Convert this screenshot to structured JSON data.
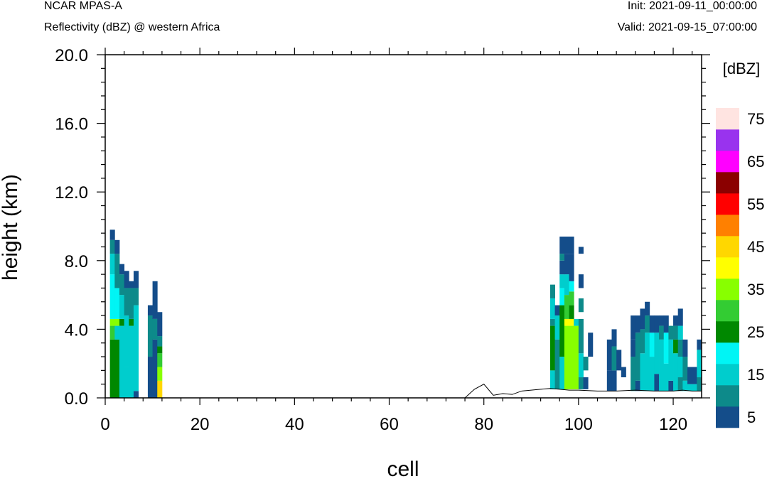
{
  "header": {
    "model": "NCAR MPAS-A",
    "field": "Reflectivity (dBZ) @ western Africa",
    "init": "Init: 2021-09-11_00:00:00",
    "valid": "Valid: 2021-09-15_07:00:00"
  },
  "chart_data": {
    "type": "heatmap",
    "xlabel": "cell",
    "ylabel": "height (km)",
    "xlim": [
      0,
      126
    ],
    "ylim": [
      0,
      20
    ],
    "x_ticks": [
      "0",
      "20",
      "40",
      "60",
      "80",
      "100",
      "120"
    ],
    "y_ticks": [
      "0.0",
      "4.0",
      "8.0",
      "12.0",
      "16.0",
      "20.0"
    ],
    "colorbar": {
      "unit_label": "[dBZ]",
      "levels": [
        5,
        10,
        15,
        20,
        25,
        30,
        35,
        40,
        45,
        50,
        55,
        60,
        65,
        70,
        75
      ],
      "tick_labels": [
        "5",
        "15",
        "25",
        "35",
        "45",
        "55",
        "65",
        "75"
      ],
      "colors": [
        "#144d8a",
        "#0d8a8a",
        "#00cdcd",
        "#00f5f5",
        "#008800",
        "#33cc33",
        "#88ff00",
        "#ffff00",
        "#ffd700",
        "#ff8000",
        "#ff0000",
        "#8b0000",
        "#ff00ff",
        "#9933ee",
        "#ffe4e1"
      ]
    },
    "terrain": {
      "cell": [
        0,
        76,
        78,
        80,
        82,
        84,
        86,
        88,
        90,
        92,
        94,
        96,
        98,
        100,
        104,
        108,
        112,
        116,
        120,
        122,
        124,
        126
      ],
      "height_km": [
        0.0,
        0.0,
        0.5,
        0.8,
        0.15,
        0.25,
        0.2,
        0.4,
        0.45,
        0.5,
        0.55,
        0.5,
        0.45,
        0.45,
        0.4,
        0.4,
        0.45,
        0.4,
        0.4,
        0.45,
        0.4,
        0.4
      ]
    },
    "columns": [
      {
        "cell": 1,
        "top_km": 9.8,
        "segments": [
          [
            0,
            3.4,
            25
          ],
          [
            3.4,
            4.2,
            30
          ],
          [
            4.2,
            4.6,
            35
          ],
          [
            4.6,
            7.2,
            20
          ],
          [
            7.2,
            8.4,
            15
          ],
          [
            8.4,
            9.2,
            10
          ],
          [
            9.2,
            9.8,
            5
          ]
        ]
      },
      {
        "cell": 2,
        "top_km": 9.2,
        "segments": [
          [
            0,
            3.4,
            25
          ],
          [
            3.4,
            4.2,
            15
          ],
          [
            4.2,
            4.6,
            35
          ],
          [
            4.6,
            6.4,
            20
          ],
          [
            6.4,
            8.4,
            10
          ],
          [
            8.4,
            9.2,
            5
          ]
        ]
      },
      {
        "cell": 3,
        "top_km": 7.8,
        "segments": [
          [
            0,
            4.2,
            15
          ],
          [
            4.2,
            4.6,
            25
          ],
          [
            4.6,
            6.0,
            15
          ],
          [
            6.0,
            7.2,
            10
          ],
          [
            7.2,
            7.8,
            5
          ]
        ]
      },
      {
        "cell": 4,
        "top_km": 7.4,
        "segments": [
          [
            0,
            1.8,
            15
          ],
          [
            1.8,
            4.8,
            15
          ],
          [
            4.8,
            6.4,
            10
          ],
          [
            6.4,
            7.4,
            5
          ]
        ]
      },
      {
        "cell": 5,
        "top_km": 6.8,
        "segments": [
          [
            0,
            4.2,
            15
          ],
          [
            4.2,
            4.6,
            25
          ],
          [
            4.6,
            6.4,
            10
          ],
          [
            6.4,
            6.8,
            5
          ]
        ]
      },
      {
        "cell": 6,
        "top_km": 7.4,
        "segments": [
          [
            0,
            0.4,
            5
          ],
          [
            0.4,
            5.4,
            15
          ],
          [
            5.4,
            6.4,
            10
          ],
          [
            6.4,
            7.4,
            5
          ]
        ]
      },
      {
        "cell": 9,
        "top_km": 5.4,
        "segments": [
          [
            0,
            2.4,
            5
          ],
          [
            2.4,
            4.8,
            10
          ],
          [
            4.8,
            5.4,
            5
          ]
        ]
      },
      {
        "cell": 10,
        "top_km": 6.8,
        "segments": [
          [
            0,
            3.4,
            5
          ],
          [
            3.4,
            4.6,
            10
          ],
          [
            4.6,
            6.8,
            5
          ]
        ]
      },
      {
        "cell": 11,
        "top_km": 5.0,
        "segments": [
          [
            0,
            1.0,
            45
          ],
          [
            1.0,
            1.8,
            35
          ],
          [
            1.8,
            2.6,
            30
          ],
          [
            2.6,
            3.0,
            25
          ],
          [
            3.0,
            3.6,
            10
          ],
          [
            3.6,
            5.0,
            5
          ]
        ]
      },
      {
        "cell": 94,
        "top_km": 6.6,
        "segments": [
          [
            0.5,
            1.6,
            15
          ],
          [
            1.6,
            4.2,
            25
          ],
          [
            4.2,
            4.6,
            10
          ],
          [
            4.6,
            5.8,
            15
          ],
          [
            5.8,
            6.6,
            10
          ]
        ]
      },
      {
        "cell": 95,
        "top_km": 5.4,
        "segments": [
          [
            0.5,
            3.4,
            10
          ],
          [
            3.4,
            4.8,
            15
          ],
          [
            4.8,
            5.4,
            5
          ]
        ]
      },
      {
        "cell": 96,
        "top_km": 9.4,
        "segments": [
          [
            0.5,
            2.4,
            15
          ],
          [
            2.4,
            5.4,
            25
          ],
          [
            5.4,
            6.4,
            20
          ],
          [
            6.4,
            7.2,
            15
          ],
          [
            7.2,
            8.0,
            5
          ],
          [
            8.0,
            8.4,
            10
          ],
          [
            8.4,
            9.4,
            5
          ]
        ]
      },
      {
        "cell": 97,
        "top_km": 9.4,
        "segments": [
          [
            0.5,
            4.2,
            35
          ],
          [
            4.2,
            4.6,
            40
          ],
          [
            4.6,
            6.0,
            30
          ],
          [
            6.0,
            7.2,
            15
          ],
          [
            7.2,
            8.4,
            5
          ],
          [
            8.4,
            9.4,
            5
          ]
        ]
      },
      {
        "cell": 98,
        "top_km": 9.4,
        "segments": [
          [
            0.5,
            4.2,
            35
          ],
          [
            4.2,
            4.6,
            40
          ],
          [
            4.6,
            5.4,
            25
          ],
          [
            5.4,
            6.2,
            30
          ],
          [
            6.2,
            6.8,
            20
          ],
          [
            6.8,
            8.4,
            5
          ],
          [
            8.4,
            9.4,
            5
          ]
        ]
      },
      {
        "cell": 99,
        "top_km": 4.6,
        "segments": [
          [
            0.5,
            4.2,
            35
          ],
          [
            4.2,
            4.6,
            15
          ]
        ]
      },
      {
        "cell": 100,
        "top_km": 8.8,
        "segments": [
          [
            0.5,
            1.2,
            10
          ],
          [
            1.2,
            2.6,
            15
          ],
          [
            2.6,
            4.6,
            10
          ],
          [
            5.0,
            5.8,
            10
          ],
          [
            6.4,
            7.2,
            5
          ],
          [
            8.4,
            8.8,
            5
          ]
        ]
      },
      {
        "cell": 101,
        "top_km": 2.4,
        "segments": [
          [
            0.5,
            1.2,
            5
          ],
          [
            1.6,
            2.4,
            10
          ]
        ]
      },
      {
        "cell": 102,
        "top_km": 3.8,
        "segments": [
          [
            2.4,
            3.8,
            5
          ]
        ]
      },
      {
        "cell": 106,
        "top_km": 3.4,
        "segments": [
          [
            0.4,
            1.6,
            5
          ],
          [
            1.6,
            3.4,
            5
          ]
        ]
      },
      {
        "cell": 107,
        "top_km": 4.0,
        "segments": [
          [
            0.4,
            1.6,
            5
          ],
          [
            1.6,
            3.0,
            10
          ],
          [
            3.0,
            4.0,
            5
          ]
        ]
      },
      {
        "cell": 108,
        "top_km": 2.8,
        "segments": [
          [
            1.6,
            2.8,
            5
          ]
        ]
      },
      {
        "cell": 109,
        "top_km": 1.8,
        "segments": [
          [
            1.2,
            1.8,
            5
          ]
        ]
      },
      {
        "cell": 111,
        "top_km": 4.8,
        "segments": [
          [
            0.4,
            2.4,
            10
          ],
          [
            2.4,
            3.4,
            5
          ],
          [
            3.4,
            4.8,
            5
          ]
        ]
      },
      {
        "cell": 112,
        "top_km": 4.8,
        "segments": [
          [
            0.4,
            1.0,
            5
          ],
          [
            1.0,
            3.8,
            10
          ],
          [
            3.8,
            4.8,
            5
          ]
        ]
      },
      {
        "cell": 113,
        "top_km": 5.2,
        "segments": [
          [
            0.4,
            2.6,
            15
          ],
          [
            2.6,
            4.0,
            10
          ],
          [
            4.0,
            5.2,
            5
          ]
        ]
      },
      {
        "cell": 114,
        "top_km": 5.6,
        "segments": [
          [
            0.4,
            3.8,
            15
          ],
          [
            3.8,
            4.8,
            10
          ],
          [
            4.8,
            5.6,
            5
          ]
        ]
      },
      {
        "cell": 115,
        "top_km": 4.8,
        "segments": [
          [
            0.4,
            2.4,
            15
          ],
          [
            2.4,
            3.8,
            20
          ],
          [
            3.8,
            4.8,
            5
          ]
        ]
      },
      {
        "cell": 116,
        "top_km": 4.8,
        "segments": [
          [
            0.4,
            1.4,
            5
          ],
          [
            1.4,
            3.8,
            15
          ],
          [
            3.8,
            4.8,
            5
          ]
        ]
      },
      {
        "cell": 117,
        "top_km": 4.8,
        "segments": [
          [
            0.4,
            3.4,
            15
          ],
          [
            3.4,
            4.2,
            10
          ],
          [
            4.2,
            4.8,
            5
          ]
        ]
      },
      {
        "cell": 118,
        "top_km": 4.8,
        "segments": [
          [
            0.4,
            2.0,
            15
          ],
          [
            2.0,
            3.8,
            20
          ],
          [
            3.8,
            4.8,
            5
          ]
        ]
      },
      {
        "cell": 119,
        "top_km": 4.2,
        "segments": [
          [
            0.4,
            1.0,
            5
          ],
          [
            1.0,
            3.4,
            15
          ],
          [
            3.4,
            4.2,
            10
          ]
        ]
      },
      {
        "cell": 120,
        "top_km": 4.8,
        "segments": [
          [
            0.4,
            2.6,
            15
          ],
          [
            2.6,
            3.4,
            25
          ],
          [
            3.4,
            4.2,
            10
          ],
          [
            4.2,
            4.8,
            5
          ]
        ]
      },
      {
        "cell": 121,
        "top_km": 5.2,
        "segments": [
          [
            0.4,
            1.2,
            10
          ],
          [
            1.2,
            2.4,
            15
          ],
          [
            2.4,
            3.4,
            10
          ],
          [
            3.4,
            4.2,
            15
          ],
          [
            4.2,
            5.2,
            5
          ]
        ]
      },
      {
        "cell": 122,
        "top_km": 3.4,
        "segments": [
          [
            0.4,
            1.0,
            15
          ],
          [
            1.0,
            2.4,
            10
          ],
          [
            2.4,
            3.4,
            5
          ]
        ]
      },
      {
        "cell": 123,
        "top_km": 1.8,
        "segments": [
          [
            0.4,
            0.8,
            15
          ],
          [
            0.8,
            1.8,
            5
          ]
        ]
      },
      {
        "cell": 124,
        "top_km": 1.8,
        "segments": [
          [
            0.4,
            0.8,
            15
          ],
          [
            0.8,
            1.8,
            5
          ]
        ]
      },
      {
        "cell": 125,
        "top_km": 3.4,
        "segments": [
          [
            0.4,
            1.2,
            10
          ],
          [
            1.2,
            2.8,
            15
          ],
          [
            2.8,
            3.4,
            5
          ]
        ]
      }
    ]
  }
}
